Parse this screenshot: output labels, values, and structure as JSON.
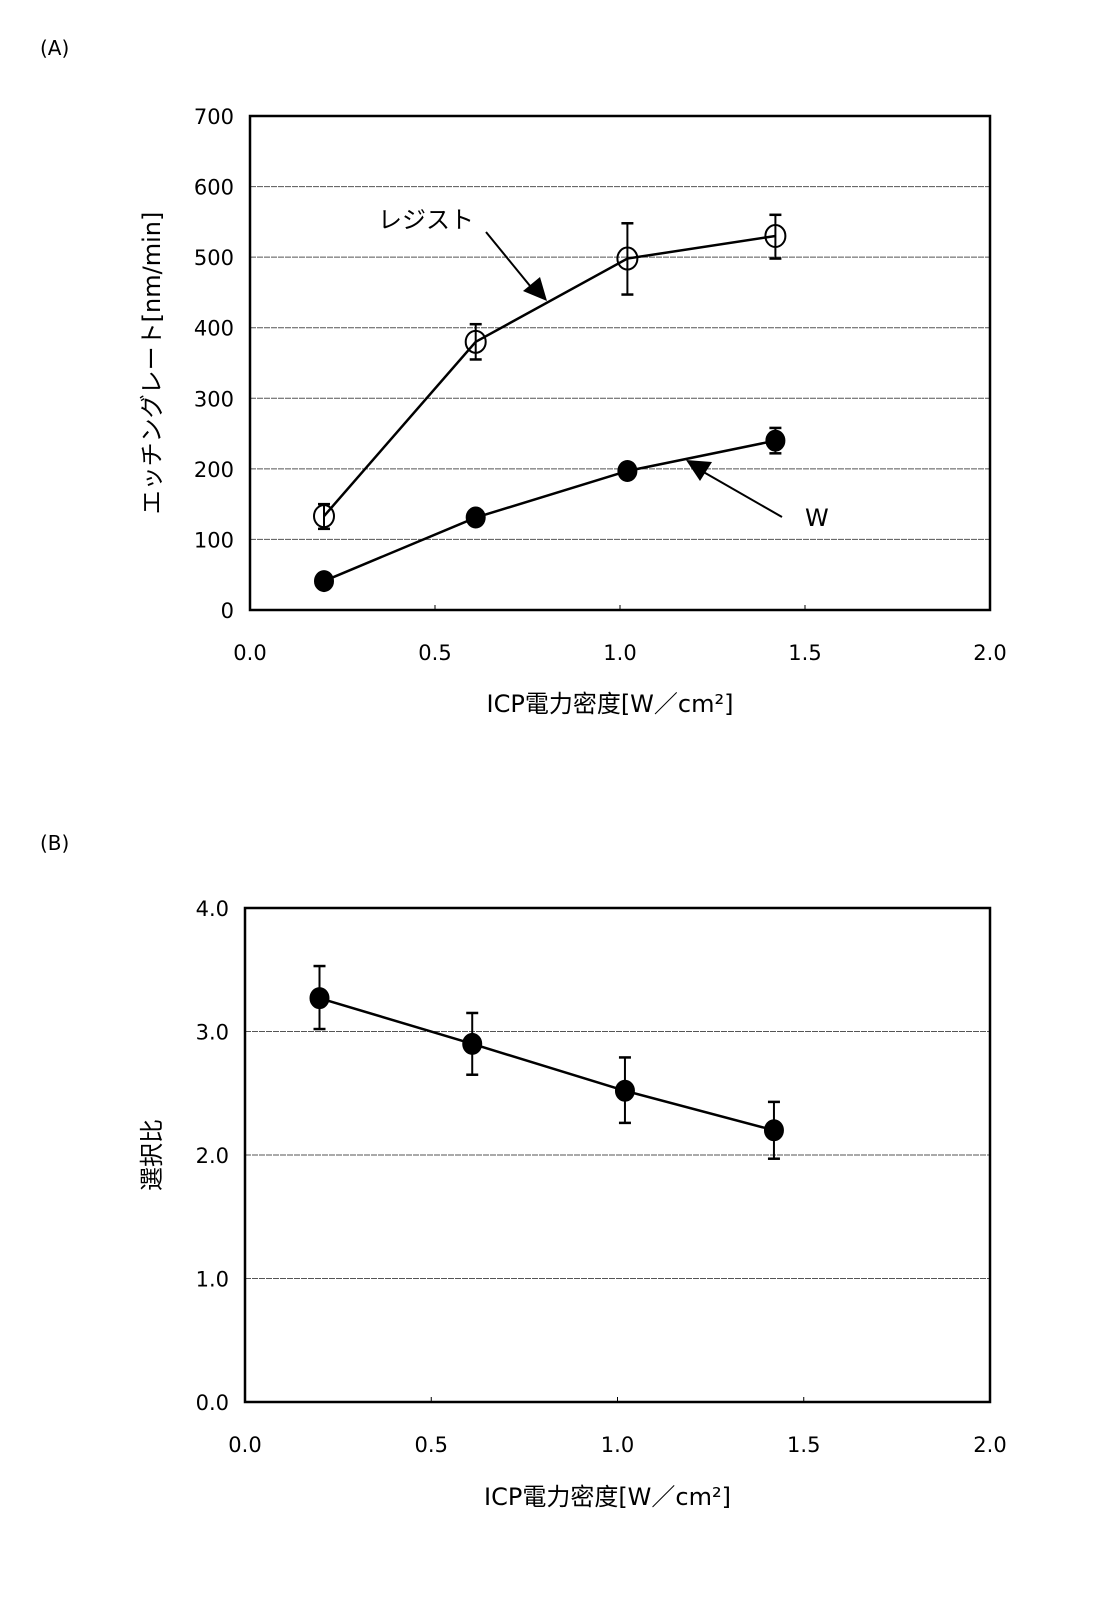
{
  "chart_data": [
    {
      "panel_label": "(A)",
      "type": "line",
      "xlabel": "ICP電力密度[W／cm²]",
      "ylabel": "エッチングレート[nm/min]",
      "xlim": [
        0,
        2.0
      ],
      "ylim": [
        0,
        700
      ],
      "xticks": [
        "0.0",
        "0.5",
        "1.0",
        "1.5",
        "2.0"
      ],
      "yticks": [
        "0",
        "100",
        "200",
        "300",
        "400",
        "500",
        "600",
        "700"
      ],
      "grid": "horizontal",
      "series": [
        {
          "name": "レジスト",
          "marker": "open-circle",
          "x": [
            0.2,
            0.61,
            1.02,
            1.42
          ],
          "y": [
            133,
            380,
            498,
            530
          ],
          "err_low": [
            115,
            355,
            447,
            498
          ],
          "err_high": [
            150,
            405,
            548,
            560
          ]
        },
        {
          "name": "W",
          "marker": "filled-circle",
          "x": [
            0.2,
            0.61,
            1.02,
            1.42
          ],
          "y": [
            41,
            131,
            197,
            240
          ],
          "err_low": [
            38,
            126,
            190,
            222
          ],
          "err_high": [
            45,
            136,
            203,
            258
          ]
        }
      ],
      "annotations": [
        {
          "text": "レジスト",
          "points_to": "レジスト"
        },
        {
          "text": "W",
          "points_to": "W"
        }
      ]
    },
    {
      "panel_label": "(B)",
      "type": "line",
      "xlabel": "ICP電力密度[W／cm²]",
      "ylabel": "選択比",
      "xlim": [
        0,
        2.0
      ],
      "ylim": [
        0,
        4.0
      ],
      "xticks": [
        "0.0",
        "0.5",
        "1.0",
        "1.5",
        "2.0"
      ],
      "yticks": [
        "0.0",
        "1.0",
        "2.0",
        "3.0",
        "4.0"
      ],
      "grid": "horizontal",
      "series": [
        {
          "marker": "filled-circle",
          "x": [
            0.2,
            0.61,
            1.02,
            1.42
          ],
          "y": [
            3.27,
            2.9,
            2.52,
            2.2
          ],
          "err_low": [
            3.02,
            2.65,
            2.26,
            1.97
          ],
          "err_high": [
            3.53,
            3.15,
            2.79,
            2.43
          ]
        }
      ]
    }
  ]
}
